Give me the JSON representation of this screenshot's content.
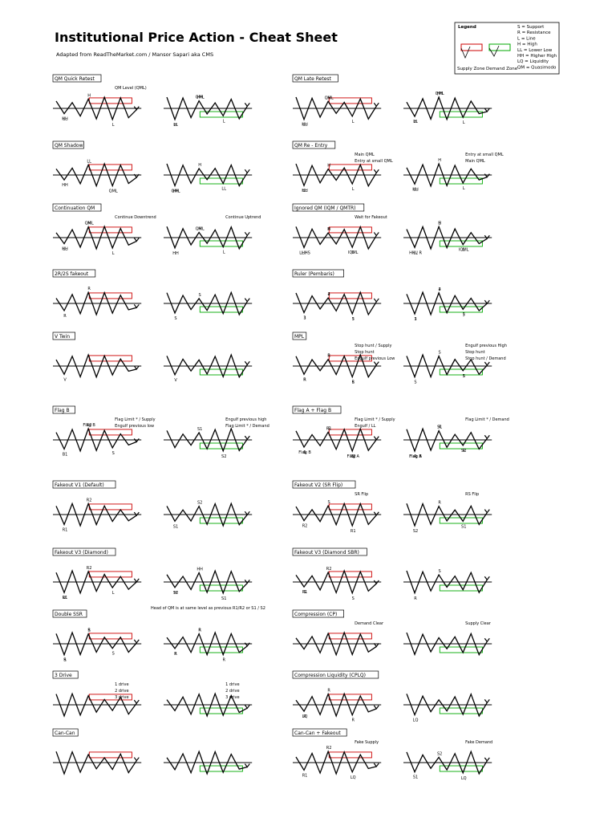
{
  "header": {
    "title": "Institutional Price Action - Cheat Sheet",
    "subtitle": "Adapted from ReadTheMarket.com / Mansor Sapari aka CMS"
  },
  "legend": {
    "title": "Legend",
    "items": [
      "S = Support",
      "R = Resistance",
      "L = Line",
      "H = High",
      "LL = Lower Low",
      "HH = Higher High",
      "LQ = Liquidity",
      "QM = Quasimodo"
    ],
    "supply": "Supply Zone",
    "demand": "Demand Zone"
  },
  "panels": [
    {
      "title": "QM Quick Retest",
      "diagrams": [
        {
          "labels": [
            "HH",
            "H",
            "L",
            "LL",
            "QM Level (QML)"
          ]
        },
        {
          "labels": [
            "H",
            "HH",
            "L",
            "LL",
            "QML"
          ]
        }
      ]
    },
    {
      "title": "QM Shadow",
      "diagrams": [
        {
          "labels": [
            "HH",
            "LL",
            "QML"
          ]
        },
        {
          "labels": [
            "HH",
            "H",
            "LL",
            "QML"
          ]
        }
      ]
    },
    {
      "title": "Continuation QM",
      "diagrams": [
        {
          "labels": [
            "HH",
            "H",
            "L",
            "LL",
            "QML",
            "Continue Downtrend"
          ]
        },
        {
          "labels": [
            "HH",
            "H",
            "L",
            "Continue Uptrend",
            "QML"
          ]
        }
      ]
    },
    {
      "title": "2R/2S fakeout",
      "diagrams": [
        {
          "labels": [
            "R",
            "R"
          ]
        },
        {
          "labels": [
            "S",
            "S"
          ]
        }
      ]
    },
    {
      "title": "V Twin",
      "diagrams": [
        {
          "labels": [
            "V"
          ]
        },
        {
          "labels": [
            "V"
          ]
        }
      ]
    },
    {
      "title": "Flag B",
      "diagrams": [
        {
          "labels": [
            "Flag Limit * / Supply",
            "Flag B",
            "S",
            "B1",
            "R2",
            "Engulf previous low"
          ]
        },
        {
          "labels": [
            "Engulf previous high",
            "S1",
            "S2",
            "Flag Limit * / Demand"
          ]
        }
      ]
    },
    {
      "title": "Fakeout V1 (Default)",
      "diagrams": [
        {
          "labels": [
            "R1",
            "R2"
          ]
        },
        {
          "labels": [
            "S1",
            "S2"
          ]
        }
      ]
    },
    {
      "title": "Fakeout V3 (Diamond)",
      "diagrams": [
        {
          "labels": [
            "R1",
            "R2",
            "L",
            "LL"
          ]
        },
        {
          "labels": [
            "H",
            "HH",
            "S1",
            "S2",
            "Head of QM is at same level as previous R1/R2 or S1 / S2"
          ]
        }
      ]
    },
    {
      "title": "Double SSR",
      "diagrams": [
        {
          "labels": [
            "R",
            "S",
            "S",
            "S",
            "R"
          ]
        },
        {
          "labels": [
            "R",
            "R",
            "R",
            "R",
            "R"
          ]
        }
      ]
    },
    {
      "title": "3 Drive",
      "diagrams": [
        {
          "labels": [
            "1 drive",
            "2 drive",
            "3 drive"
          ]
        },
        {
          "labels": [
            "1 drive",
            "2 drive",
            "3 drive"
          ]
        }
      ]
    },
    {
      "title": "Can-Can",
      "diagrams": [
        {
          "labels": []
        },
        {
          "labels": []
        }
      ]
    },
    {
      "title": "QM Late Retest",
      "diagrams": [
        {
          "labels": [
            "HH",
            "H",
            "L",
            "LL",
            "QML"
          ]
        },
        {
          "labels": [
            "H",
            "HH",
            "L",
            "LL",
            "QML"
          ]
        }
      ]
    },
    {
      "title": "QM Re - Entry",
      "diagrams": [
        {
          "labels": [
            "HH",
            "H",
            "L",
            "LL",
            "Main QML",
            "Entry at small QML"
          ]
        },
        {
          "labels": [
            "HH",
            "H",
            "L",
            "LL",
            "Entry at small QML",
            "Main QML"
          ]
        }
      ]
    },
    {
      "title": "Ignored QM (IQM / QMTR)",
      "diagrams": [
        {
          "labels": [
            "HH",
            "H",
            "L",
            "LL / S",
            "R",
            "IQML",
            "Wait for Fakeout"
          ]
        },
        {
          "labels": [
            "HH / R",
            "H",
            "L",
            "LL",
            "S",
            "IQML"
          ]
        }
      ]
    },
    {
      "title": "Ruler (Pembaris)",
      "diagrams": [
        {
          "labels": [
            "1",
            "2",
            "3",
            "3",
            "4",
            "5"
          ]
        },
        {
          "labels": [
            "1",
            "2",
            "3",
            "3",
            "4",
            "5"
          ]
        }
      ]
    },
    {
      "title": "MPL",
      "diagrams": [
        {
          "labels": [
            "R",
            "R",
            "S",
            "R",
            "R",
            "R",
            "Stop hunt / Supply",
            "Stop hunt",
            "Engulf previous Low"
          ]
        },
        {
          "labels": [
            "Engulf previous High",
            "Stop hunt",
            "S",
            "S",
            "S",
            "S",
            "Stop hunt / Demand"
          ]
        }
      ]
    },
    {
      "title": "Flag A + Flag B",
      "diagrams": [
        {
          "labels": [
            "Flag B",
            "Flag Limit * / Supply",
            "Flag A",
            "L",
            "S",
            "S",
            "S",
            "R1",
            "R2",
            "Engulf / LL"
          ]
        },
        {
          "labels": [
            "Flag A",
            "R",
            "R",
            "R",
            "S1",
            "S2",
            "Flag B",
            "Flag Limit * / Demand"
          ]
        }
      ]
    },
    {
      "title": "Fakeout V2 (SR Flip)",
      "diagrams": [
        {
          "labels": [
            "SR Flip",
            "S",
            "R1",
            "R2"
          ]
        },
        {
          "labels": [
            "RS Flip",
            "R",
            "S1",
            "S2"
          ]
        }
      ]
    },
    {
      "title": "Fakeout V3 (Diamond SBR)",
      "diagrams": [
        {
          "labels": [
            "R1",
            "R2",
            "S",
            "S"
          ]
        },
        {
          "labels": [
            "R",
            "S"
          ]
        }
      ]
    },
    {
      "title": "Compression (CP)",
      "diagrams": [
        {
          "labels": [
            "Demand Clear"
          ]
        },
        {
          "labels": [
            "Supply Clear"
          ]
        }
      ]
    },
    {
      "title": "Compression Liquidity (CPLQ)",
      "diagrams": [
        {
          "labels": [
            "LQ",
            "R",
            "R",
            "R"
          ]
        },
        {
          "labels": [
            "LQ"
          ]
        }
      ]
    },
    {
      "title": "Can-Can + Fakeout",
      "diagrams": [
        {
          "labels": [
            "R1",
            "R2",
            "LQ",
            "Fake Supply"
          ]
        },
        {
          "labels": [
            "S1",
            "S2",
            "LQ",
            "Fake Demand"
          ]
        }
      ]
    }
  ]
}
